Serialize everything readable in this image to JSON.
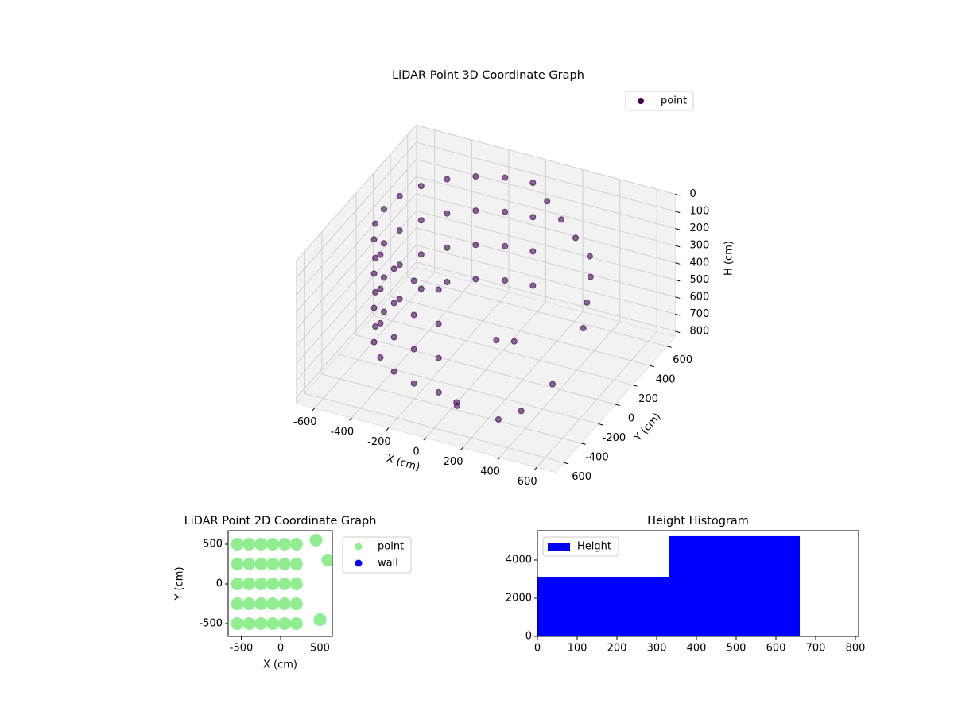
{
  "chart_data": [
    {
      "type": "scatter3d",
      "title": "LiDAR Point 3D Coordinate Graph",
      "xlabel": "X (cm)",
      "ylabel": "Y (cm)",
      "zlabel": "H (cm)",
      "xlim": [
        -700,
        700
      ],
      "ylim": [
        -700,
        700
      ],
      "zlim": [
        0,
        830
      ],
      "z_inverted": true,
      "xticks": [
        -600,
        -400,
        -200,
        0,
        200,
        400,
        600
      ],
      "yticks": [
        -600,
        -400,
        -200,
        0,
        200,
        400,
        600
      ],
      "zticks": [
        0,
        100,
        200,
        300,
        400,
        500,
        600,
        700,
        800
      ],
      "grid": true,
      "legend": "upper right",
      "series": [
        {
          "name": "point",
          "color": "#440154",
          "x": [
            0,
            -142,
            -275,
            -389,
            -476,
            -531,
            -550,
            -531,
            -476,
            -389,
            -275,
            -142,
            0,
            0,
            -142,
            -275,
            -389,
            -476,
            -531,
            -550,
            -531,
            -476,
            -389,
            -275,
            -142,
            0,
            0,
            -142,
            -275,
            -389,
            -476,
            -531,
            -550,
            -531,
            -476,
            -389,
            -275,
            -142,
            0,
            0,
            -142,
            -275,
            -389,
            -476,
            -531,
            -550,
            -531,
            -476,
            -389,
            -275,
            -142,
            0,
            100,
            200,
            300,
            400,
            450,
            500,
            550,
            500,
            400,
            300,
            150,
            200,
            100,
            50
          ],
          "y": [
            550,
            531,
            476,
            389,
            275,
            142,
            0,
            -142,
            -275,
            -389,
            -476,
            -531,
            -550,
            550,
            531,
            476,
            389,
            275,
            142,
            0,
            -142,
            -275,
            -389,
            -476,
            -531,
            -550,
            550,
            531,
            476,
            389,
            275,
            142,
            0,
            -142,
            -275,
            -389,
            -476,
            -531,
            -550,
            550,
            531,
            476,
            389,
            275,
            142,
            0,
            -142,
            -275,
            -389,
            -476,
            -531,
            -550,
            500,
            450,
            400,
            350,
            250,
            100,
            -50,
            -300,
            -450,
            -500,
            -200,
            -100,
            -550,
            -450
          ],
          "z": [
            50,
            50,
            50,
            50,
            50,
            50,
            50,
            50,
            50,
            50,
            50,
            50,
            50,
            250,
            250,
            250,
            250,
            250,
            250,
            250,
            250,
            250,
            250,
            250,
            250,
            250,
            450,
            450,
            450,
            450,
            450,
            450,
            450,
            450,
            450,
            450,
            450,
            450,
            450,
            650,
            650,
            650,
            650,
            650,
            650,
            650,
            650,
            650,
            650,
            650,
            650,
            650,
            100,
            150,
            200,
            250,
            300,
            350,
            400,
            600,
            700,
            750,
            500,
            550,
            700,
            750
          ]
        }
      ]
    },
    {
      "type": "scatter",
      "title": "LiDAR Point 2D Coordinate Graph",
      "xlabel": "X (cm)",
      "ylabel": "Y (cm)",
      "xlim": [
        -667,
        657
      ],
      "ylim": [
        -660,
        670
      ],
      "xticks": [
        -500,
        0,
        500
      ],
      "yticks": [
        -500,
        0,
        500
      ],
      "legend": "outside right",
      "series": [
        {
          "name": "point",
          "color": "lightgreen",
          "x": [
            -550,
            -550,
            -550,
            -550,
            -550,
            -400,
            -400,
            -400,
            -400,
            -400,
            -250,
            -250,
            -250,
            -250,
            -250,
            -100,
            -100,
            -100,
            -100,
            -100,
            50,
            50,
            50,
            50,
            50,
            200,
            200,
            200,
            200,
            200,
            450,
            500,
            600
          ],
          "y": [
            -500,
            -250,
            0,
            250,
            500,
            -500,
            -250,
            0,
            250,
            500,
            -500,
            -250,
            0,
            250,
            500,
            -500,
            -250,
            0,
            250,
            500,
            -500,
            -250,
            0,
            250,
            500,
            -500,
            -250,
            0,
            250,
            500,
            550,
            -450,
            300
          ]
        },
        {
          "name": "wall",
          "color": "blue",
          "x": [],
          "y": []
        }
      ]
    },
    {
      "type": "histogram",
      "title": "Height Histogram",
      "bins": [
        0,
        330,
        660
      ],
      "xlim": [
        0,
        808
      ],
      "ylim": [
        0,
        5540
      ],
      "xticks": [
        0,
        100,
        200,
        300,
        400,
        500,
        600,
        700,
        800
      ],
      "yticks": [
        0,
        2000,
        4000
      ],
      "legend": "upper left",
      "series": [
        {
          "name": "Height",
          "color": "blue",
          "values": [
            3125,
            5250
          ]
        }
      ]
    }
  ]
}
